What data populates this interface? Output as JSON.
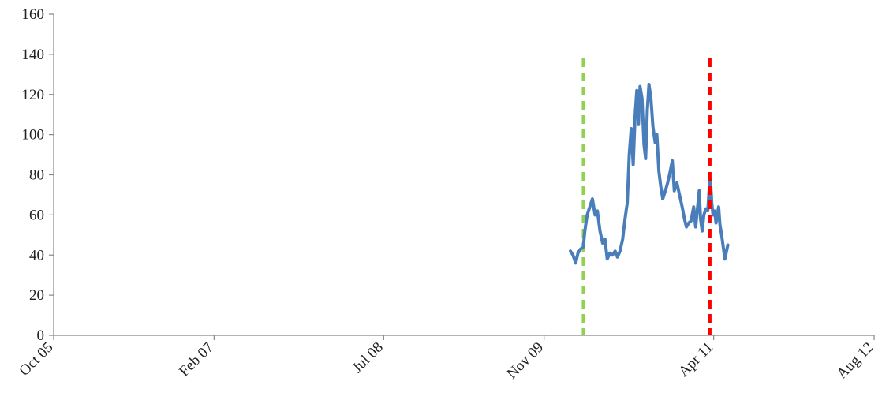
{
  "chart_data": {
    "type": "line",
    "title": "",
    "xlabel": "",
    "ylabel": "",
    "ylim": [
      0,
      160
    ],
    "yticks": [
      0,
      20,
      40,
      60,
      80,
      100,
      120,
      140,
      160
    ],
    "xlim": [
      "2005-10-01",
      "2012-08-01"
    ],
    "xticks": [
      {
        "date": "2005-10-01",
        "label": "Oct 05"
      },
      {
        "date": "2007-02-01",
        "label": "Feb 07"
      },
      {
        "date": "2008-07-01",
        "label": "Jul 08"
      },
      {
        "date": "2009-11-01",
        "label": "Nov 09"
      },
      {
        "date": "2011-04-01",
        "label": "Apr 11"
      },
      {
        "date": "2012-08-01",
        "label": "Aug 12"
      }
    ],
    "grid": false,
    "series": [
      {
        "color": "#4a7ebb",
        "points": [
          [
            "2010-01-20",
            42
          ],
          [
            "2010-01-28",
            40
          ],
          [
            "2010-02-05",
            36
          ],
          [
            "2010-02-12",
            41
          ],
          [
            "2010-02-20",
            43
          ],
          [
            "2010-02-28",
            44
          ],
          [
            "2010-03-05",
            52
          ],
          [
            "2010-03-12",
            60
          ],
          [
            "2010-03-20",
            64
          ],
          [
            "2010-03-28",
            68
          ],
          [
            "2010-04-05",
            60
          ],
          [
            "2010-04-12",
            62
          ],
          [
            "2010-04-20",
            52
          ],
          [
            "2010-04-28",
            46
          ],
          [
            "2010-05-05",
            48
          ],
          [
            "2010-05-12",
            38
          ],
          [
            "2010-05-20",
            41
          ],
          [
            "2010-05-28",
            40
          ],
          [
            "2010-06-05",
            42
          ],
          [
            "2010-06-12",
            39
          ],
          [
            "2010-06-20",
            42
          ],
          [
            "2010-06-28",
            48
          ],
          [
            "2010-07-05",
            58
          ],
          [
            "2010-07-12",
            66
          ],
          [
            "2010-07-18",
            90
          ],
          [
            "2010-07-24",
            103
          ],
          [
            "2010-07-30",
            85
          ],
          [
            "2010-08-05",
            110
          ],
          [
            "2010-08-10",
            122
          ],
          [
            "2010-08-15",
            105
          ],
          [
            "2010-08-20",
            124
          ],
          [
            "2010-08-26",
            118
          ],
          [
            "2010-09-01",
            95
          ],
          [
            "2010-09-06",
            88
          ],
          [
            "2010-09-11",
            112
          ],
          [
            "2010-09-16",
            125
          ],
          [
            "2010-09-22",
            118
          ],
          [
            "2010-09-28",
            104
          ],
          [
            "2010-10-05",
            96
          ],
          [
            "2010-10-10",
            100
          ],
          [
            "2010-10-16",
            82
          ],
          [
            "2010-10-22",
            74
          ],
          [
            "2010-10-28",
            68
          ],
          [
            "2010-11-05",
            72
          ],
          [
            "2010-11-12",
            76
          ],
          [
            "2010-11-20",
            82
          ],
          [
            "2010-11-26",
            87
          ],
          [
            "2010-12-02",
            72
          ],
          [
            "2010-12-10",
            76
          ],
          [
            "2010-12-18",
            70
          ],
          [
            "2010-12-26",
            64
          ],
          [
            "2011-01-02",
            58
          ],
          [
            "2011-01-08",
            54
          ],
          [
            "2011-01-15",
            56
          ],
          [
            "2011-01-22",
            57
          ],
          [
            "2011-01-30",
            64
          ],
          [
            "2011-02-05",
            54
          ],
          [
            "2011-02-10",
            62
          ],
          [
            "2011-02-16",
            72
          ],
          [
            "2011-02-20",
            58
          ],
          [
            "2011-02-25",
            52
          ],
          [
            "2011-03-02",
            60
          ],
          [
            "2011-03-08",
            63
          ],
          [
            "2011-03-14",
            62
          ],
          [
            "2011-03-18",
            72
          ],
          [
            "2011-03-22",
            78
          ],
          [
            "2011-03-26",
            66
          ],
          [
            "2011-03-30",
            60
          ],
          [
            "2011-04-04",
            62
          ],
          [
            "2011-04-08",
            56
          ],
          [
            "2011-04-12",
            60
          ],
          [
            "2011-04-16",
            64
          ],
          [
            "2011-04-20",
            55
          ],
          [
            "2011-04-25",
            50
          ],
          [
            "2011-04-30",
            44
          ],
          [
            "2011-05-05",
            38
          ],
          [
            "2011-05-10",
            42
          ],
          [
            "2011-05-14",
            45
          ]
        ]
      }
    ],
    "vertical_lines": [
      {
        "date": "2010-03-01",
        "color": "#92d050",
        "style": "dashed"
      },
      {
        "date": "2011-03-20",
        "color": "#ff0000",
        "style": "dashed"
      }
    ]
  }
}
